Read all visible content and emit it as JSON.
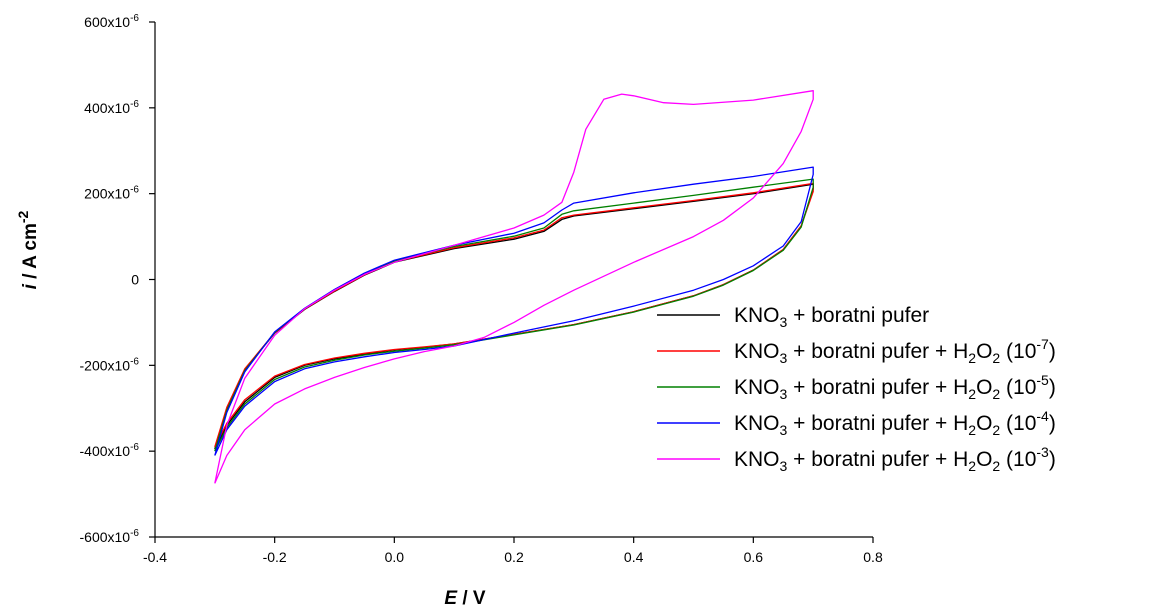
{
  "chart_data": {
    "type": "line",
    "title": "",
    "xlabel": {
      "italic": "E",
      "rest": " / V"
    },
    "ylabel": {
      "italic": "i",
      "rest": " / A cm",
      "sup": "-2"
    },
    "xlim": [
      -0.4,
      0.8
    ],
    "ylim": [
      -600,
      600
    ],
    "x_ticks": [
      {
        "v": -0.4,
        "t": "-0.4"
      },
      {
        "v": -0.2,
        "t": "-0.2"
      },
      {
        "v": 0.0,
        "t": "0.0"
      },
      {
        "v": 0.2,
        "t": "0.2"
      },
      {
        "v": 0.4,
        "t": "0.4"
      },
      {
        "v": 0.6,
        "t": "0.6"
      },
      {
        "v": 0.8,
        "t": "0.8"
      }
    ],
    "y_ticks": [
      {
        "v": 600,
        "base": "600x10",
        "exp": "-6"
      },
      {
        "v": 400,
        "base": "400x10",
        "exp": "-6"
      },
      {
        "v": 200,
        "base": "200x10",
        "exp": "-6"
      },
      {
        "v": 0,
        "base": "0",
        "exp": ""
      },
      {
        "v": -200,
        "base": "-200x10",
        "exp": "-6"
      },
      {
        "v": -400,
        "base": "-400x10",
        "exp": "-6"
      },
      {
        "v": -600,
        "base": "-600x10",
        "exp": "-6"
      }
    ],
    "y_unit_note": "y values in 10^-6 A cm^-2",
    "grid": false,
    "legend_position": "bottom-right",
    "series": [
      {
        "legend": {
          "a": "KNO",
          "s1": "3",
          "b": " + boratni pufer",
          "s2": "",
          "c": "",
          "sup": "",
          "d": ""
        },
        "color": "#000000",
        "points": [
          [
            -0.3,
            -395
          ],
          [
            -0.28,
            -340
          ],
          [
            -0.25,
            -285
          ],
          [
            -0.2,
            -228
          ],
          [
            -0.15,
            -200
          ],
          [
            -0.1,
            -185
          ],
          [
            -0.05,
            -174
          ],
          [
            0.0,
            -164
          ],
          [
            0.05,
            -158
          ],
          [
            0.1,
            -150
          ],
          [
            0.2,
            -128
          ],
          [
            0.3,
            -105
          ],
          [
            0.4,
            -75
          ],
          [
            0.5,
            -38
          ],
          [
            0.55,
            -12
          ],
          [
            0.6,
            22
          ],
          [
            0.65,
            70
          ],
          [
            0.68,
            125
          ],
          [
            0.7,
            210
          ],
          [
            0.7,
            222
          ],
          [
            0.6,
            200
          ],
          [
            0.5,
            182
          ],
          [
            0.4,
            165
          ],
          [
            0.3,
            148
          ],
          [
            0.28,
            140
          ],
          [
            0.25,
            112
          ],
          [
            0.2,
            94
          ],
          [
            0.1,
            72
          ],
          [
            0.0,
            40
          ],
          [
            -0.05,
            10
          ],
          [
            -0.1,
            -28
          ],
          [
            -0.15,
            -70
          ],
          [
            -0.2,
            -125
          ],
          [
            -0.25,
            -210
          ],
          [
            -0.28,
            -300
          ],
          [
            -0.3,
            -395
          ]
        ]
      },
      {
        "legend": {
          "a": "KNO",
          "s1": "3",
          "b": " + boratni pufer + H",
          "s2": "2",
          "c": "O",
          "sup": "-7",
          "d": ""
        },
        "color": "#ff0000",
        "points": [
          [
            -0.3,
            -390
          ],
          [
            -0.28,
            -335
          ],
          [
            -0.25,
            -280
          ],
          [
            -0.2,
            -225
          ],
          [
            -0.15,
            -198
          ],
          [
            -0.1,
            -183
          ],
          [
            -0.05,
            -172
          ],
          [
            0.0,
            -163
          ],
          [
            0.05,
            -157
          ],
          [
            0.1,
            -150
          ],
          [
            0.2,
            -128
          ],
          [
            0.3,
            -105
          ],
          [
            0.4,
            -75
          ],
          [
            0.5,
            -38
          ],
          [
            0.55,
            -12
          ],
          [
            0.6,
            22
          ],
          [
            0.65,
            70
          ],
          [
            0.68,
            125
          ],
          [
            0.7,
            205
          ],
          [
            0.7,
            224
          ],
          [
            0.6,
            202
          ],
          [
            0.5,
            184
          ],
          [
            0.4,
            167
          ],
          [
            0.3,
            150
          ],
          [
            0.28,
            144
          ],
          [
            0.25,
            115
          ],
          [
            0.2,
            97
          ],
          [
            0.1,
            74
          ],
          [
            0.0,
            41
          ],
          [
            -0.05,
            11
          ],
          [
            -0.1,
            -27
          ],
          [
            -0.15,
            -69
          ],
          [
            -0.2,
            -124
          ],
          [
            -0.25,
            -208
          ],
          [
            -0.28,
            -298
          ],
          [
            -0.3,
            -390
          ]
        ]
      },
      {
        "legend": {
          "a": "KNO",
          "s1": "3",
          "b": " + boratni pufer + H",
          "s2": "2",
          "c": "O",
          "sup": "-5",
          "d": ""
        },
        "color": "#008000",
        "points": [
          [
            -0.3,
            -400
          ],
          [
            -0.28,
            -345
          ],
          [
            -0.25,
            -290
          ],
          [
            -0.2,
            -233
          ],
          [
            -0.15,
            -204
          ],
          [
            -0.1,
            -188
          ],
          [
            -0.05,
            -176
          ],
          [
            0.0,
            -167
          ],
          [
            0.05,
            -160
          ],
          [
            0.1,
            -152
          ],
          [
            0.2,
            -129
          ],
          [
            0.3,
            -106
          ],
          [
            0.4,
            -76
          ],
          [
            0.5,
            -39
          ],
          [
            0.55,
            -13
          ],
          [
            0.6,
            21
          ],
          [
            0.65,
            68
          ],
          [
            0.68,
            122
          ],
          [
            0.7,
            215
          ],
          [
            0.7,
            234
          ],
          [
            0.6,
            215
          ],
          [
            0.5,
            196
          ],
          [
            0.4,
            178
          ],
          [
            0.3,
            160
          ],
          [
            0.28,
            152
          ],
          [
            0.25,
            120
          ],
          [
            0.2,
            101
          ],
          [
            0.1,
            77
          ],
          [
            0.0,
            43
          ],
          [
            -0.05,
            13
          ],
          [
            -0.1,
            -25
          ],
          [
            -0.15,
            -68
          ],
          [
            -0.2,
            -123
          ],
          [
            -0.25,
            -212
          ],
          [
            -0.28,
            -305
          ],
          [
            -0.3,
            -400
          ]
        ]
      },
      {
        "legend": {
          "a": "KNO",
          "s1": "3",
          "b": " + boratni pufer + H",
          "s2": "2",
          "c": "O",
          "sup": "-4",
          "d": ""
        },
        "color": "#0000ff",
        "points": [
          [
            -0.3,
            -410
          ],
          [
            -0.28,
            -350
          ],
          [
            -0.25,
            -295
          ],
          [
            -0.2,
            -238
          ],
          [
            -0.15,
            -208
          ],
          [
            -0.1,
            -192
          ],
          [
            -0.05,
            -180
          ],
          [
            0.0,
            -170
          ],
          [
            0.05,
            -163
          ],
          [
            0.1,
            -155
          ],
          [
            0.2,
            -125
          ],
          [
            0.3,
            -96
          ],
          [
            0.4,
            -62
          ],
          [
            0.5,
            -25
          ],
          [
            0.55,
            0
          ],
          [
            0.6,
            32
          ],
          [
            0.65,
            78
          ],
          [
            0.68,
            135
          ],
          [
            0.7,
            245
          ],
          [
            0.7,
            262
          ],
          [
            0.6,
            240
          ],
          [
            0.5,
            222
          ],
          [
            0.4,
            202
          ],
          [
            0.3,
            178
          ],
          [
            0.28,
            162
          ],
          [
            0.25,
            132
          ],
          [
            0.2,
            108
          ],
          [
            0.1,
            80
          ],
          [
            0.0,
            45
          ],
          [
            -0.05,
            15
          ],
          [
            -0.1,
            -23
          ],
          [
            -0.15,
            -67
          ],
          [
            -0.2,
            -122
          ],
          [
            -0.25,
            -215
          ],
          [
            -0.28,
            -310
          ],
          [
            -0.3,
            -410
          ]
        ]
      },
      {
        "legend": {
          "a": "KNO",
          "s1": "3",
          "b": " + boratni pufer + H",
          "s2": "2",
          "c": "O",
          "sup": "-3",
          "d": ""
        },
        "color": "#ff00ff",
        "points": [
          [
            -0.3,
            -475
          ],
          [
            -0.28,
            -410
          ],
          [
            -0.25,
            -350
          ],
          [
            -0.2,
            -290
          ],
          [
            -0.15,
            -255
          ],
          [
            -0.1,
            -228
          ],
          [
            -0.05,
            -205
          ],
          [
            0.0,
            -185
          ],
          [
            0.05,
            -168
          ],
          [
            0.1,
            -155
          ],
          [
            0.15,
            -135
          ],
          [
            0.2,
            -100
          ],
          [
            0.25,
            -60
          ],
          [
            0.3,
            -25
          ],
          [
            0.4,
            40
          ],
          [
            0.5,
            100
          ],
          [
            0.55,
            138
          ],
          [
            0.6,
            190
          ],
          [
            0.65,
            270
          ],
          [
            0.68,
            345
          ],
          [
            0.7,
            420
          ],
          [
            0.7,
            440
          ],
          [
            0.6,
            418
          ],
          [
            0.5,
            408
          ],
          [
            0.45,
            412
          ],
          [
            0.4,
            428
          ],
          [
            0.38,
            432
          ],
          [
            0.35,
            420
          ],
          [
            0.32,
            350
          ],
          [
            0.3,
            250
          ],
          [
            0.28,
            180
          ],
          [
            0.25,
            150
          ],
          [
            0.2,
            120
          ],
          [
            0.1,
            80
          ],
          [
            0.0,
            40
          ],
          [
            -0.05,
            12
          ],
          [
            -0.1,
            -25
          ],
          [
            -0.15,
            -68
          ],
          [
            -0.2,
            -130
          ],
          [
            -0.25,
            -230
          ],
          [
            -0.28,
            -340
          ],
          [
            -0.3,
            -475
          ]
        ]
      }
    ]
  }
}
